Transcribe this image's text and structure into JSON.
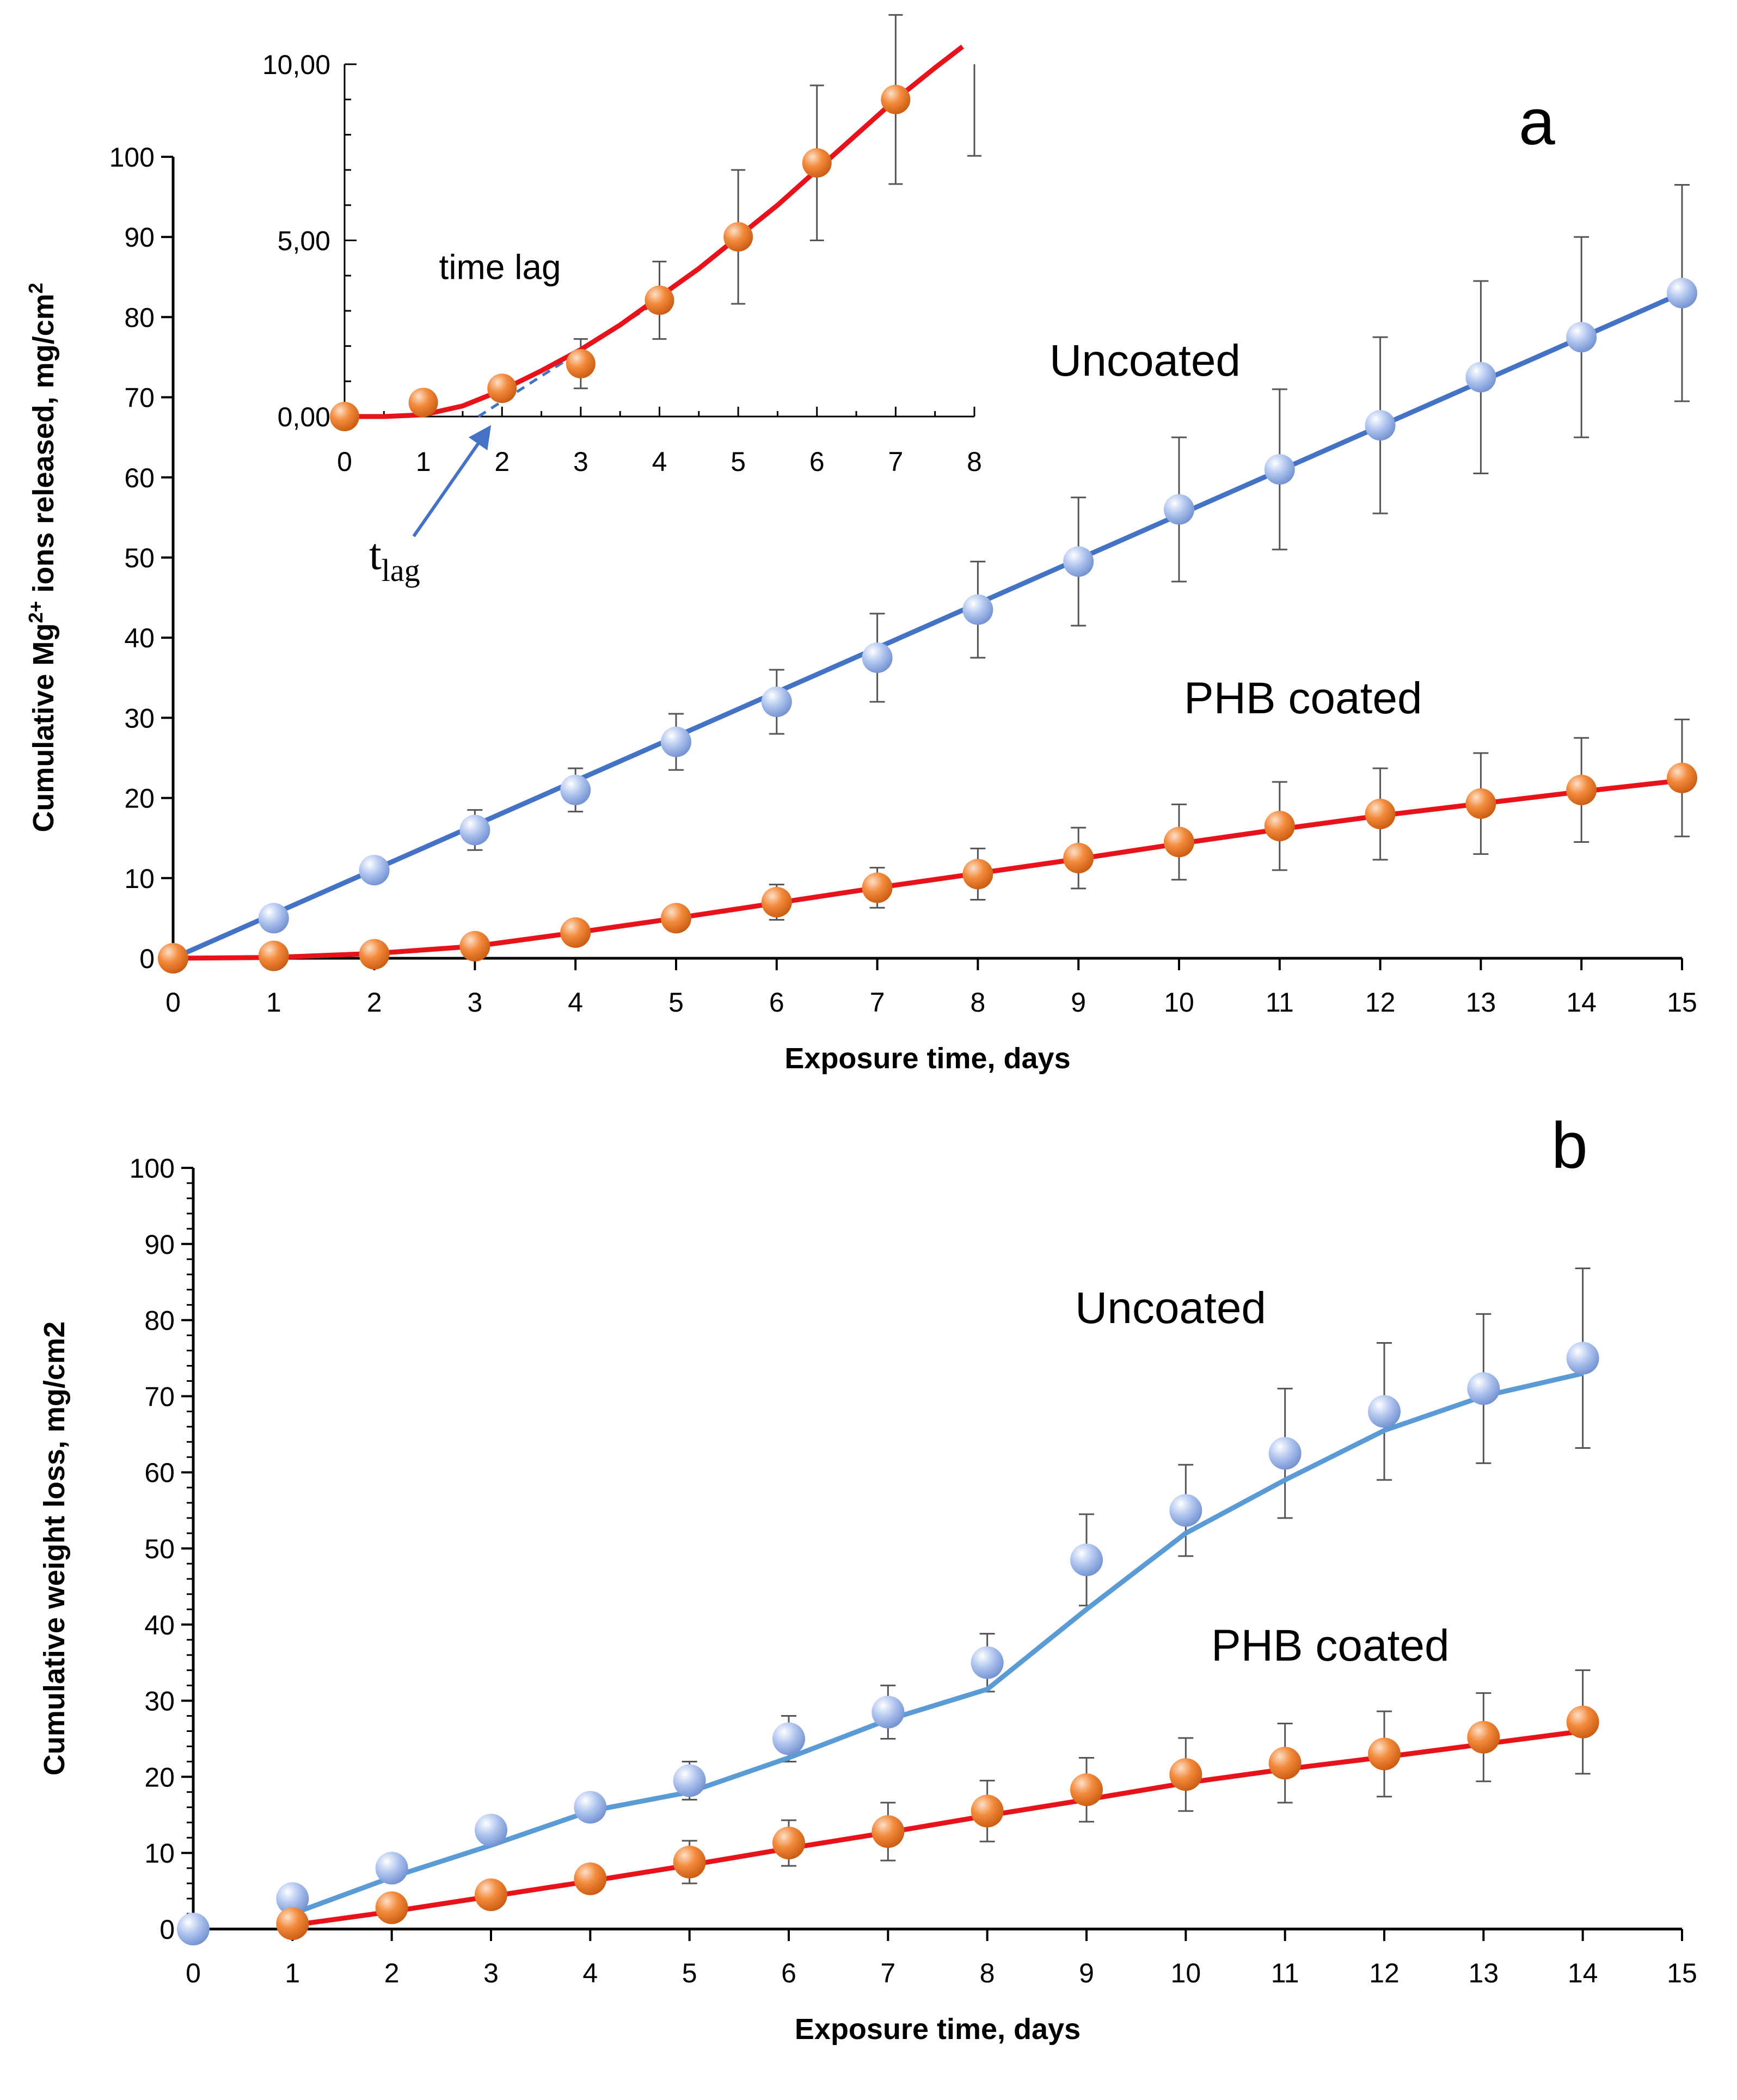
{
  "chart_data": [
    {
      "panel": "a",
      "type": "scatter",
      "xlabel": "Exposure time, days",
      "ylabel": "Cumulative Mg2+ ions released, mg/cm2",
      "ylabel_parts": {
        "pre": "Cumulative Mg",
        "sup": "2+",
        "mid": " ions released, mg/cm",
        "sup2": "2"
      },
      "xlim": [
        0,
        15
      ],
      "ylim": [
        0,
        100
      ],
      "x_ticks": [
        "0",
        "1",
        "2",
        "3",
        "4",
        "5",
        "6",
        "7",
        "8",
        "9",
        "10",
        "11",
        "12",
        "13",
        "14",
        "15"
      ],
      "y_ticks": [
        "0",
        "10",
        "20",
        "30",
        "40",
        "50",
        "60",
        "70",
        "80",
        "90",
        "100"
      ],
      "series": [
        {
          "name": "Uncoated",
          "label": "Uncoated",
          "line_color": "#4472c4",
          "marker_color": "#9bb7ea",
          "x": [
            0,
            1,
            2,
            3,
            4,
            5,
            6,
            7,
            8,
            9,
            10,
            11,
            12,
            13,
            14,
            15
          ],
          "y": [
            0,
            5,
            11,
            16,
            21,
            27,
            32,
            37.5,
            43.5,
            49.5,
            56,
            61,
            66.5,
            72.5,
            77.5,
            83
          ],
          "err": [
            0,
            0,
            0,
            2.5,
            2.7,
            3.5,
            4,
            5.5,
            6,
            8,
            9,
            10,
            11,
            12,
            12.5,
            13.5
          ],
          "fit": [
            [
              0,
              0
            ],
            [
              15,
              83
            ]
          ]
        },
        {
          "name": "PHB coated",
          "label": "PHB coated",
          "line_color": "#e8131a",
          "marker_color": "#f28a3c",
          "x": [
            0,
            1,
            2,
            3,
            4,
            5,
            6,
            7,
            8,
            9,
            10,
            11,
            12,
            13,
            14,
            15
          ],
          "y": [
            0,
            0.3,
            0.5,
            1.5,
            3.2,
            5,
            7,
            8.8,
            10.5,
            12.5,
            14.5,
            16.5,
            18,
            19.3,
            21,
            22.5
          ],
          "err": [
            0,
            0,
            0,
            0,
            0,
            0,
            2.2,
            2.5,
            3.2,
            3.8,
            4.7,
            5.5,
            5.7,
            6.3,
            6.5,
            7.3
          ],
          "fit": [
            [
              0,
              0
            ],
            [
              1,
              0.1
            ],
            [
              2,
              0.6
            ],
            [
              3,
              1.5
            ],
            [
              4,
              3.2
            ],
            [
              5,
              5
            ],
            [
              6,
              6.9
            ],
            [
              7,
              8.8
            ],
            [
              8,
              10.6
            ],
            [
              9,
              12.4
            ],
            [
              10,
              14.3
            ],
            [
              11,
              16.1
            ],
            [
              12,
              17.8
            ],
            [
              13,
              19.3
            ],
            [
              14,
              20.8
            ],
            [
              15,
              22.2
            ]
          ]
        }
      ],
      "inset": {
        "xlim": [
          0,
          8
        ],
        "ylim": [
          0,
          10
        ],
        "x_ticks": [
          "0",
          "1",
          "2",
          "3",
          "4",
          "5",
          "6",
          "7",
          "8"
        ],
        "y_ticks": [
          "0,00",
          "5,00",
          "10,00"
        ],
        "label": "time lag",
        "tlag_main": "t",
        "tlag_sub": "lag",
        "line_color": "#e8131a",
        "marker_color": "#f28a3c",
        "x": [
          0,
          1,
          2,
          3,
          4,
          5,
          6,
          7
        ],
        "y": [
          0,
          0.4,
          0.8,
          1.5,
          3.3,
          5.1,
          7.2,
          9
        ],
        "err": [
          0,
          0,
          0,
          0.7,
          1.1,
          1.9,
          2.2,
          2.4
        ],
        "fit": [
          [
            0,
            0
          ],
          [
            0.5,
            0
          ],
          [
            1,
            0.05
          ],
          [
            1.5,
            0.3
          ],
          [
            2,
            0.75
          ],
          [
            2.5,
            1.3
          ],
          [
            3,
            1.9
          ],
          [
            3.5,
            2.6
          ],
          [
            4,
            3.4
          ],
          [
            4.5,
            4.2
          ],
          [
            5,
            5.1
          ],
          [
            5.5,
            6
          ],
          [
            6,
            7
          ],
          [
            6.5,
            8
          ],
          [
            7,
            9
          ],
          [
            7.5,
            9.9
          ],
          [
            7.85,
            10.5
          ]
        ],
        "tangent": [
          [
            1.7,
            0
          ],
          [
            4,
            3.3
          ]
        ],
        "extra_errbar": {
          "x": 8,
          "low": 7.4,
          "high": 10
        }
      },
      "tlag_arrow_color": "#4472c4"
    },
    {
      "panel": "b",
      "type": "scatter",
      "xlabel": "Exposure time, days",
      "ylabel": "Cumulative weight loss, mg/cm2",
      "xlim": [
        0,
        15
      ],
      "ylim": [
        0,
        100
      ],
      "x_ticks": [
        "0",
        "1",
        "2",
        "3",
        "4",
        "5",
        "6",
        "7",
        "8",
        "9",
        "10",
        "11",
        "12",
        "13",
        "14",
        "15"
      ],
      "y_ticks": [
        "0",
        "10",
        "20",
        "30",
        "40",
        "50",
        "60",
        "70",
        "80",
        "90",
        "100"
      ],
      "series": [
        {
          "name": "Uncoated",
          "label": "Uncoated",
          "line_color": "#5a9bd5",
          "marker_color": "#9bb7ea",
          "x": [
            0,
            1,
            2,
            3,
            4,
            5,
            6,
            7,
            8,
            9,
            10,
            11,
            12,
            13,
            14
          ],
          "y": [
            0,
            4,
            8,
            13,
            16,
            19.5,
            25,
            28.5,
            35,
            48.5,
            55,
            62.5,
            68,
            71,
            75
          ],
          "err": [
            0,
            0,
            0,
            0,
            0,
            2.5,
            3,
            3.5,
            3.8,
            6,
            6,
            8.5,
            9,
            9.8,
            11.8
          ],
          "fit": [
            [
              1,
              2
            ],
            [
              2,
              6.8
            ],
            [
              3,
              11
            ],
            [
              4,
              15.5
            ],
            [
              5,
              18
            ],
            [
              6,
              22.5
            ],
            [
              7,
              27.5
            ],
            [
              8,
              31.5
            ],
            [
              9,
              42
            ],
            [
              10,
              52
            ],
            [
              11,
              59
            ],
            [
              12,
              65.5
            ],
            [
              13,
              70
            ],
            [
              14,
              73
            ]
          ]
        },
        {
          "name": "PHB coated",
          "label": "PHB coated",
          "line_color": "#e8131a",
          "marker_color": "#f28a3c",
          "x": [
            1,
            2,
            3,
            4,
            5,
            6,
            7,
            8,
            9,
            10,
            11,
            12,
            13,
            14
          ],
          "y": [
            0.7,
            2.8,
            4.5,
            6.6,
            8.8,
            11.3,
            12.8,
            15.5,
            18.3,
            20.3,
            21.8,
            23,
            25.2,
            27.2
          ],
          "err": [
            0,
            0,
            0,
            0,
            2.8,
            3,
            3.8,
            4,
            4.2,
            4.8,
            5.2,
            5.6,
            5.8,
            6.8
          ],
          "fit": [
            [
              1,
              0.5
            ],
            [
              2,
              2.3
            ],
            [
              3,
              4.3
            ],
            [
              4,
              6.3
            ],
            [
              5,
              8.4
            ],
            [
              6,
              10.6
            ],
            [
              7,
              12.7
            ],
            [
              8,
              14.9
            ],
            [
              9,
              17
            ],
            [
              10,
              19.2
            ],
            [
              11,
              21
            ],
            [
              12,
              22.6
            ],
            [
              13,
              24.3
            ],
            [
              14,
              26
            ]
          ]
        }
      ]
    }
  ],
  "panel_letters": [
    "a",
    "b"
  ]
}
